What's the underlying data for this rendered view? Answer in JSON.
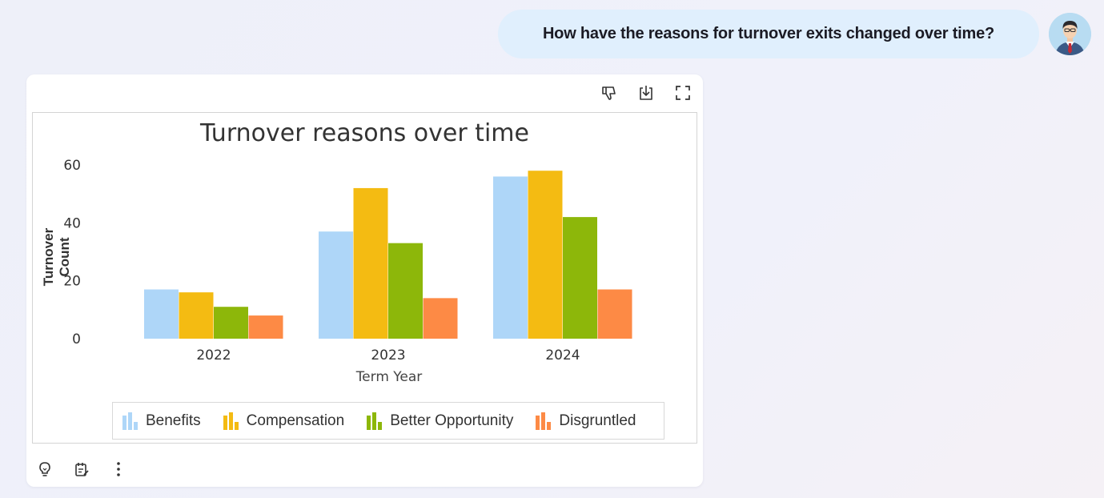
{
  "conversation": {
    "user_question": "How have the reasons for turnover exits changed over time?"
  },
  "card": {
    "top_actions": [
      "thumbs-down-icon",
      "download-icon",
      "fullscreen-icon"
    ],
    "bottom_actions": [
      "lightbulb-icon",
      "notes-icon",
      "more-vertical-icon"
    ]
  },
  "chart_data": {
    "type": "bar",
    "title": "Turnover reasons over time",
    "xlabel": "Term Year",
    "ylabel": "Turnover Count",
    "categories": [
      "2022",
      "2023",
      "2024"
    ],
    "series": [
      {
        "name": "Benefits",
        "color": "#aed6f8",
        "values": [
          17,
          37,
          56
        ]
      },
      {
        "name": "Compensation",
        "color": "#f4bb12",
        "values": [
          16,
          52,
          58
        ]
      },
      {
        "name": "Better Opportunity",
        "color": "#8db70a",
        "values": [
          11,
          33,
          42
        ]
      },
      {
        "name": "Disgruntled",
        "color": "#fd8a45",
        "values": [
          8,
          14,
          17
        ]
      }
    ],
    "yticks": [
      "0",
      "20",
      "40",
      "60"
    ],
    "ylim": [
      0,
      60
    ],
    "legend_position": "bottom",
    "grid": false
  }
}
